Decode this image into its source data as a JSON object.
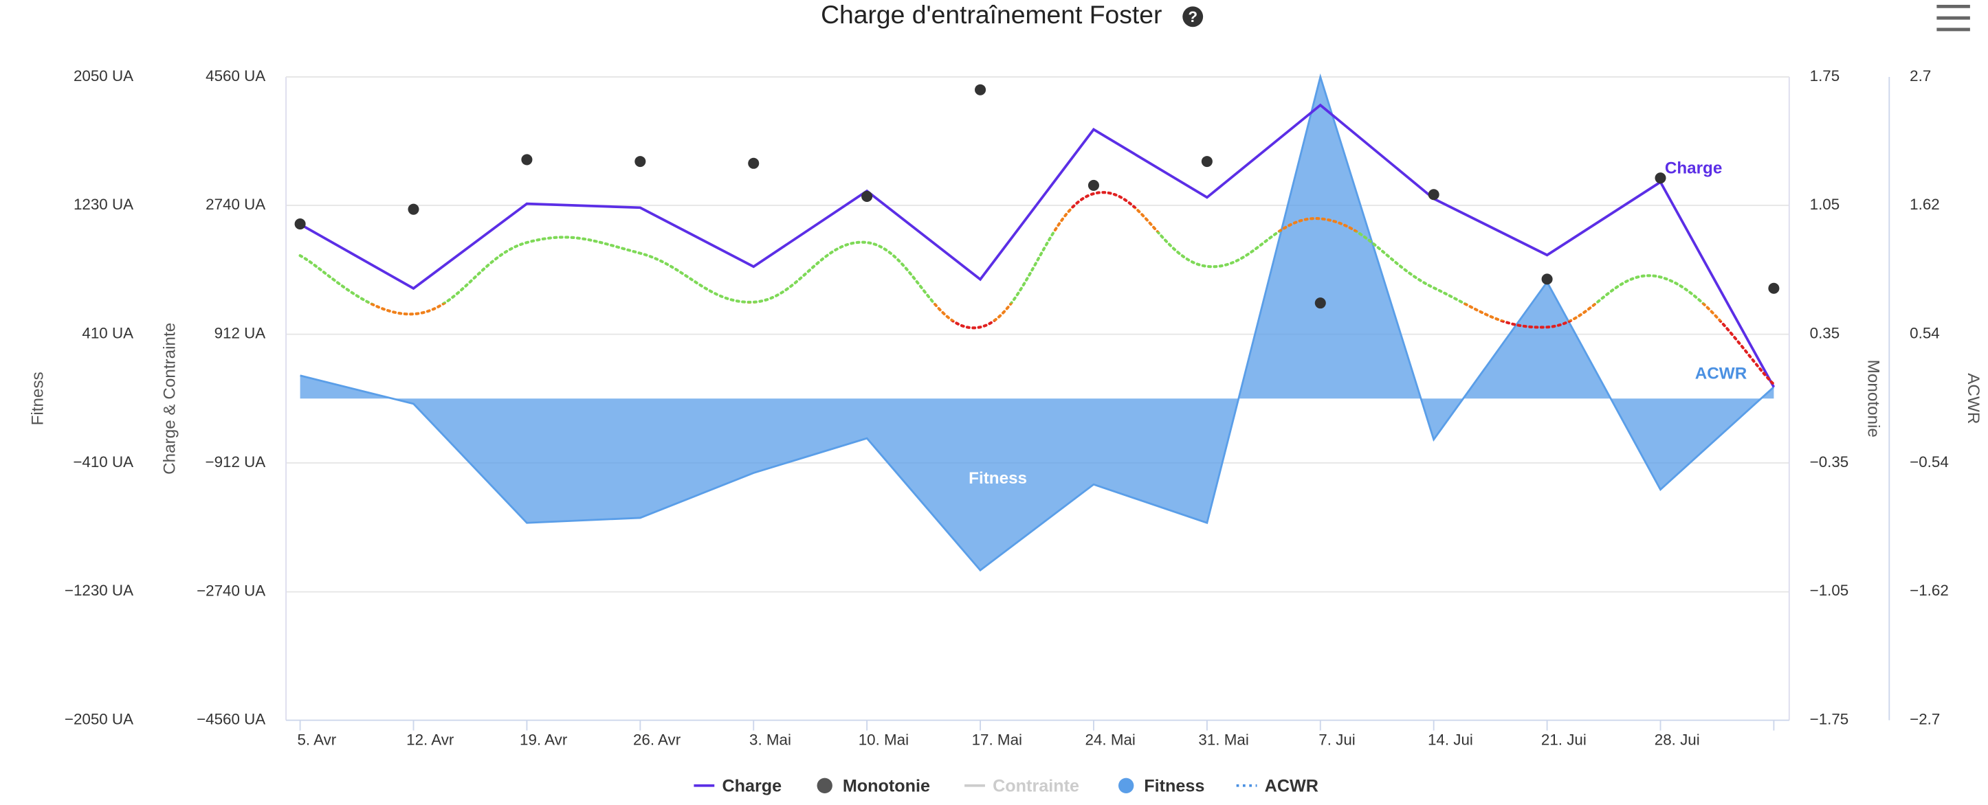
{
  "chart_data": {
    "type": "line",
    "title": "Charge d'entraînement Foster",
    "categories": [
      "5. Avr",
      "12. Avr",
      "19. Avr",
      "26. Avr",
      "3. Mai",
      "10. Mai",
      "17. Mai",
      "24. Mai",
      "31. Mai",
      "7. Jui",
      "14. Jui",
      "21. Jui",
      "28. Jui",
      null
    ],
    "ylabel": "Charge & Contrainte",
    "ylim": [
      -4560,
      4560
    ],
    "yticks": [
      {
        "value": -4560,
        "label": "−4560 UA"
      },
      {
        "value": -2740,
        "label": "−2740 UA"
      },
      {
        "value": -912,
        "label": "−912 UA"
      },
      {
        "value": 912,
        "label": "912 UA"
      },
      {
        "value": 2740,
        "label": "2740 UA"
      },
      {
        "value": 4560,
        "label": "4560 UA"
      }
    ],
    "y2label": "Fitness",
    "y2lim": [
      -2050,
      2050
    ],
    "y2ticks": [
      {
        "value": -2050,
        "label": "−2050 UA"
      },
      {
        "value": -1230,
        "label": "−1230 UA"
      },
      {
        "value": -410,
        "label": "−410 UA"
      },
      {
        "value": 410,
        "label": "410 UA"
      },
      {
        "value": 1230,
        "label": "1230 UA"
      },
      {
        "value": 2050,
        "label": "2050 UA"
      }
    ],
    "y3label": "Monotonie",
    "y3lim": [
      -1.75,
      1.75
    ],
    "y3ticks": [
      {
        "value": -1.75,
        "label": "−1.75"
      },
      {
        "value": -1.05,
        "label": "−1.05"
      },
      {
        "value": -0.35,
        "label": "−0.35"
      },
      0.35,
      1.05,
      1.75
    ],
    "y4label": "ACWR",
    "y4lim": [
      -2.7,
      2.7
    ],
    "y4ticks": [
      {
        "value": -2.7,
        "label": "−2.7"
      },
      {
        "value": -1.62,
        "label": "−1.62"
      },
      {
        "value": -0.54,
        "label": "−0.54"
      },
      0.54,
      1.62,
      2.7
    ],
    "grid": true,
    "legend": "bottom",
    "series": [
      {
        "name": "Charge",
        "type": "line",
        "axis": "y",
        "color": "#5b2ee6",
        "values": [
          2471,
          1562,
          2762,
          2707,
          1871,
          2943,
          1690,
          3815,
          2852,
          4160,
          2834,
          2035,
          3070,
          164
        ]
      },
      {
        "name": "Monotonie",
        "type": "scatter",
        "axis": "y3",
        "color": "#333333",
        "values": [
          0.95,
          1.03,
          1.3,
          1.29,
          1.28,
          1.1,
          1.68,
          1.16,
          1.29,
          0.52,
          1.11,
          0.65,
          1.2,
          0.6
        ]
      },
      {
        "name": "Contrainte",
        "type": "line",
        "axis": "y",
        "color": "#cccccc",
        "visible": false
      },
      {
        "name": "Fitness",
        "type": "area",
        "axis": "y2",
        "color": "#5a9ee8",
        "values": [
          147,
          -33,
          -792,
          -760,
          -474,
          -253,
          -1094,
          -547,
          -792,
          2050,
          -261,
          743,
          -580,
          74
        ]
      },
      {
        "name": "ACWR",
        "type": "spline",
        "axis": "y4",
        "color": "#4a90e2",
        "dashed": true,
        "values": [
          1.2,
          0.71,
          1.31,
          1.22,
          0.81,
          1.31,
          0.6,
          1.72,
          1.11,
          1.51,
          0.93,
          0.6,
          1.02,
          0.12
        ],
        "zones": [
          {
            "to": 0.65,
            "color": "#e02020"
          },
          {
            "to": 0.8,
            "color": "#f0801a"
          },
          {
            "to": 1.4,
            "color": "#7ed957"
          },
          {
            "to": 1.6,
            "color": "#f0801a"
          },
          {
            "color": "#e02020"
          }
        ]
      }
    ]
  }
}
